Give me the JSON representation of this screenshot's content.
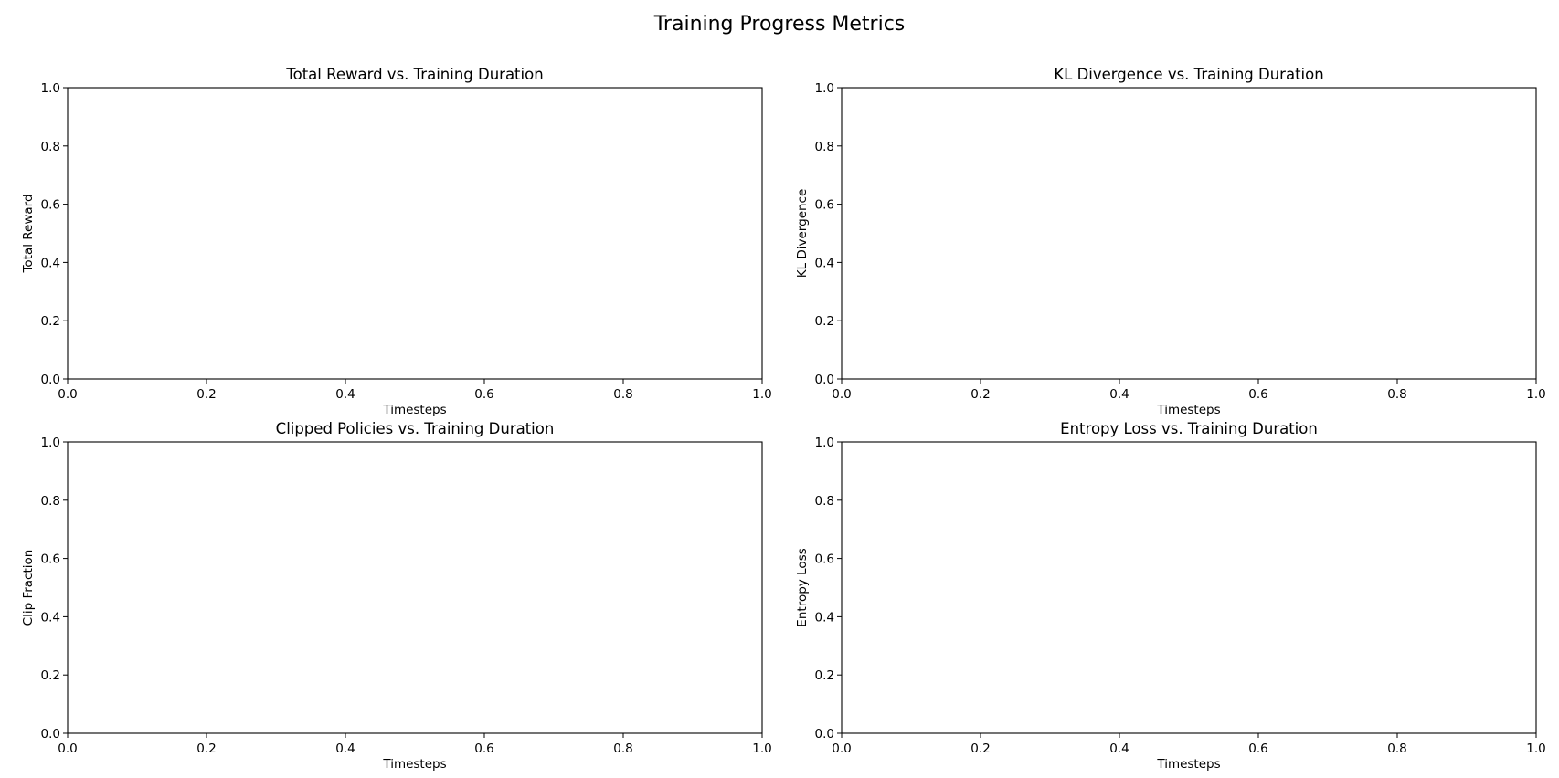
{
  "figure": {
    "title": "Training Progress Metrics"
  },
  "chart_data": [
    {
      "type": "line",
      "title": "Total Reward vs. Training Duration",
      "xlabel": "Timesteps",
      "ylabel": "Total Reward",
      "xlim": [
        0,
        1
      ],
      "ylim": [
        0,
        1
      ],
      "xticks": [
        "0.0",
        "0.2",
        "0.4",
        "0.6",
        "0.8",
        "1.0"
      ],
      "yticks": [
        "0.0",
        "0.2",
        "0.4",
        "0.6",
        "0.8",
        "1.0"
      ],
      "series": [],
      "grid": false
    },
    {
      "type": "line",
      "title": "KL Divergence vs. Training Duration",
      "xlabel": "Timesteps",
      "ylabel": "KL Divergence",
      "xlim": [
        0,
        1
      ],
      "ylim": [
        0,
        1
      ],
      "xticks": [
        "0.0",
        "0.2",
        "0.4",
        "0.6",
        "0.8",
        "1.0"
      ],
      "yticks": [
        "0.0",
        "0.2",
        "0.4",
        "0.6",
        "0.8",
        "1.0"
      ],
      "series": [],
      "grid": false
    },
    {
      "type": "line",
      "title": "Clipped Policies vs. Training Duration",
      "xlabel": "Timesteps",
      "ylabel": "Clip Fraction",
      "xlim": [
        0,
        1
      ],
      "ylim": [
        0,
        1
      ],
      "xticks": [
        "0.0",
        "0.2",
        "0.4",
        "0.6",
        "0.8",
        "1.0"
      ],
      "yticks": [
        "0.0",
        "0.2",
        "0.4",
        "0.6",
        "0.8",
        "1.0"
      ],
      "series": [],
      "grid": false
    },
    {
      "type": "line",
      "title": "Entropy Loss vs. Training Duration",
      "xlabel": "Timesteps",
      "ylabel": "Entropy Loss",
      "xlim": [
        0,
        1
      ],
      "ylim": [
        0,
        1
      ],
      "xticks": [
        "0.0",
        "0.2",
        "0.4",
        "0.6",
        "0.8",
        "1.0"
      ],
      "yticks": [
        "0.0",
        "0.2",
        "0.4",
        "0.6",
        "0.8",
        "1.0"
      ],
      "series": [],
      "grid": false
    }
  ]
}
